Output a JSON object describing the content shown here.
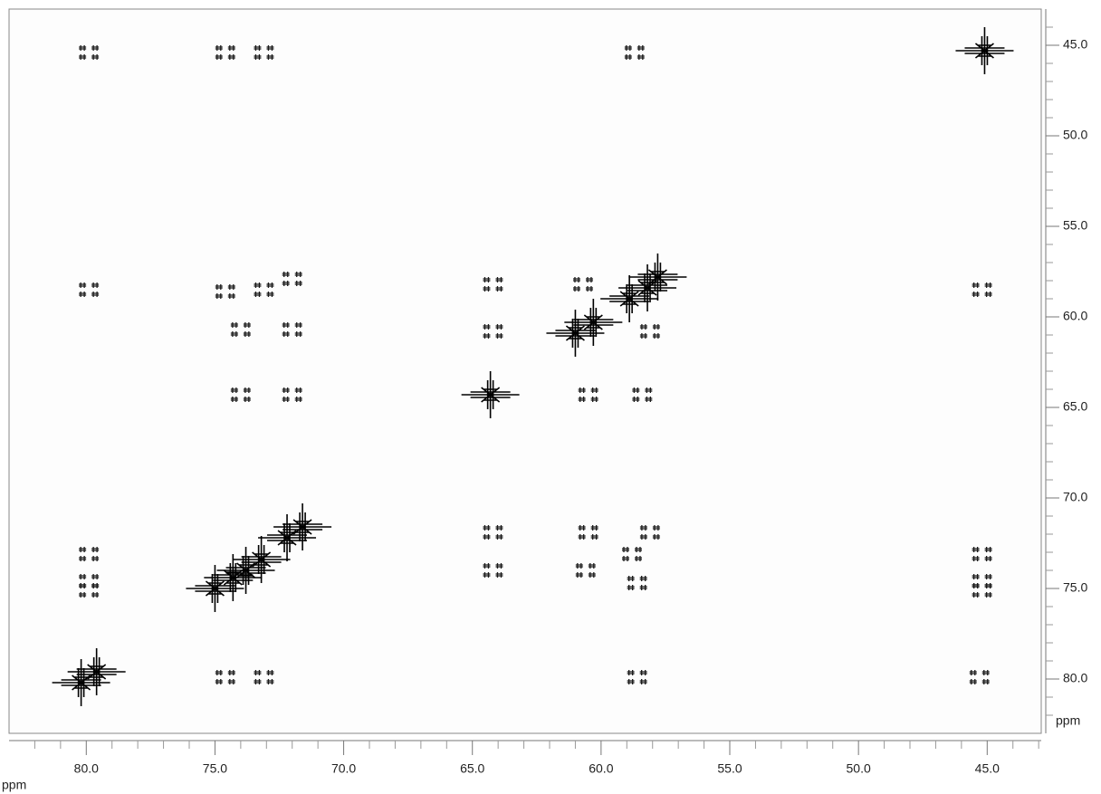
{
  "chart_data": {
    "type": "scatter",
    "xlabel": "ppm",
    "ylabel": "ppm",
    "xlim": [
      83.0,
      42.9
    ],
    "ylim": [
      43.0,
      83.0
    ],
    "xticks": [
      {
        "value": 80,
        "label": "80.0"
      },
      {
        "value": 75,
        "label": "75.0"
      },
      {
        "value": 70,
        "label": "70.0"
      },
      {
        "value": 65,
        "label": "65.0"
      },
      {
        "value": 60,
        "label": "60.0"
      },
      {
        "value": 55,
        "label": "55.0"
      },
      {
        "value": 50,
        "label": "50.0"
      },
      {
        "value": 45,
        "label": "45.0"
      }
    ],
    "yticks": [
      {
        "value": 45,
        "label": "45.0"
      },
      {
        "value": 50,
        "label": "50.0"
      },
      {
        "value": 55,
        "label": "55.0"
      },
      {
        "value": 60,
        "label": "60.0"
      },
      {
        "value": 65,
        "label": "65.0"
      },
      {
        "value": 70,
        "label": "70.0"
      },
      {
        "value": 75,
        "label": "75.0"
      },
      {
        "value": 80,
        "label": "80.0"
      }
    ],
    "xminorticks": [
      82,
      81,
      79,
      78,
      77,
      76,
      74,
      73,
      72,
      71,
      69,
      68,
      67,
      66,
      64,
      63,
      62,
      61,
      59,
      58,
      57,
      56,
      54,
      53,
      52,
      51,
      49,
      48,
      47,
      46,
      44,
      43
    ],
    "yminorticks": [
      44,
      46,
      47,
      48,
      49,
      51,
      52,
      53,
      54,
      56,
      57,
      58,
      59,
      61,
      62,
      63,
      64,
      66,
      67,
      68,
      69,
      71,
      72,
      73,
      74,
      76,
      77,
      78,
      79,
      81,
      82
    ],
    "series": [
      {
        "marker": "cross",
        "color": "#1a1a1a",
        "x": [
          79.9,
          74.6,
          73.1,
          58.7,
          79.9,
          74.6,
          73.1,
          72.0,
          64.2,
          60.7,
          45.2,
          74.0,
          72.0,
          64.2,
          58.1,
          74.0,
          72.0,
          60.5,
          58.4,
          64.2,
          60.5,
          58.1,
          79.9,
          58.8,
          45.2,
          64.2,
          60.6,
          79.9,
          58.6,
          45.2,
          79.9,
          45.2,
          74.6,
          73.1,
          58.6,
          45.3
        ],
        "values": [
          45.4,
          45.4,
          45.4,
          45.4,
          58.5,
          58.6,
          58.5,
          57.9,
          58.2,
          58.2,
          58.5,
          60.7,
          60.7,
          60.8,
          60.8,
          64.3,
          64.3,
          64.3,
          64.3,
          71.9,
          71.9,
          71.9,
          73.1,
          73.1,
          73.1,
          74.0,
          74.0,
          74.6,
          74.7,
          74.6,
          75.1,
          75.1,
          79.9,
          79.9,
          79.9,
          79.9
        ]
      },
      {
        "marker": "diagonal",
        "color": "#000000",
        "x": [
          45.1,
          58.9,
          58.2,
          57.8,
          60.3,
          61.0,
          64.3,
          75.0,
          74.3,
          73.8,
          73.2,
          72.2,
          71.6,
          80.2,
          79.6
        ],
        "values": [
          45.3,
          59.0,
          58.4,
          57.8,
          60.3,
          60.9,
          64.3,
          75.0,
          74.4,
          74.0,
          73.4,
          72.2,
          71.6,
          80.2,
          79.6
        ]
      }
    ]
  }
}
